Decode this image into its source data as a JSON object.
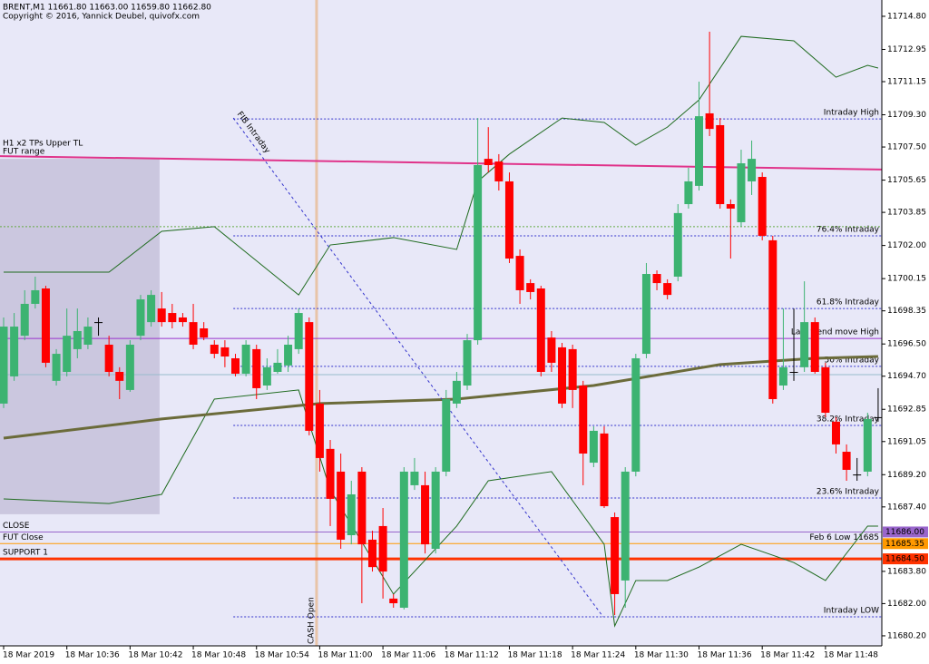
{
  "chart_data": {
    "type": "candlestick",
    "title": "BRENT,M1 11661.80 11663.00 11659.80 11662.80",
    "subtitle": "Copyright © 2016, Yannick Deubel, quivofx.com",
    "categories": [
      "18 Mar 2019",
      null,
      null,
      null,
      null,
      null,
      "18 Mar 10:36",
      null,
      null,
      null,
      null,
      null,
      "18 Mar 10:42",
      null,
      null,
      null,
      null,
      null,
      "18 Mar 10:48",
      null,
      null,
      null,
      null,
      null,
      "18 Mar 10:54",
      null,
      null,
      null,
      null,
      null,
      "18 Mar 11:00",
      null,
      null,
      null,
      null,
      null,
      "18 Mar 11:06",
      null,
      null,
      null,
      null,
      null,
      "18 Mar 11:12",
      null,
      null,
      null,
      null,
      null,
      "18 Mar 11:18",
      null,
      null,
      null,
      null,
      null,
      "18 Mar 11:24",
      null,
      null,
      null,
      null,
      null,
      "18 Mar 11:30",
      null,
      null,
      null,
      null,
      null,
      "18 Mar 11:36",
      null,
      null,
      null,
      null,
      null,
      "18 Mar 11:42",
      null,
      null,
      null,
      null,
      null,
      "18 Mar 11:48",
      null,
      null,
      null,
      null,
      null
    ],
    "open": [
      11693.17,
      11694.69,
      11696.96,
      11698.74,
      11699.6,
      11694.44,
      11694.94,
      11696.21,
      11696.46,
      11697.72,
      11696.46,
      11694.94,
      11693.93,
      11696.96,
      11697.72,
      11698.48,
      11698.23,
      11697.98,
      11697.72,
      11697.37,
      11696.46,
      11696.31,
      11695.7,
      11694.84,
      11696.21,
      11694.18,
      11694.94,
      11695.3,
      11696.21,
      11697.72,
      11693.17,
      11690.64,
      11689.37,
      11685.82,
      11689.37,
      11685.57,
      11686.33,
      11682.28,
      11681.77,
      11688.61,
      11688.61,
      11685.06,
      11689.37,
      11693.17,
      11694.18,
      11696.71,
      11706.84,
      11706.69,
      11705.58,
      11701.42,
      11699.9,
      11699.6,
      11696.86,
      11696.31,
      11696.21,
      11694.18,
      11689.87,
      11691.5,
      11686.83,
      11683.29,
      11689.37,
      11695.95,
      11700.41,
      11699.9,
      11700.26,
      11704.31,
      11705.33,
      11709.38,
      11708.72,
      11704.31,
      11703.3,
      11705.58,
      11705.83,
      11702.29,
      11694.18,
      11694.94,
      11695.2,
      11697.72,
      11695.2,
      11692.16,
      11690.48,
      11689.21,
      11689.37,
      11692.41
    ],
    "high": [
      11697.98,
      11698.23,
      11699.5,
      11700.26,
      11699.75,
      11696.21,
      11698.48,
      11698.48,
      11697.98,
      11697.98,
      11696.96,
      11695.2,
      11696.71,
      11699.24,
      11699.5,
      11699.4,
      11698.74,
      11698.23,
      11698.74,
      11697.72,
      11696.71,
      11696.71,
      11695.95,
      11696.71,
      11696.46,
      11695.7,
      11696.21,
      11696.96,
      11698.48,
      11697.98,
      11693.93,
      11691.14,
      11690.38,
      11688.86,
      11689.62,
      11686.07,
      11687.34,
      11682.53,
      11689.62,
      11690.13,
      11689.37,
      11689.62,
      11693.93,
      11694.94,
      11697.06,
      11709.12,
      11708.61,
      11707.1,
      11706.08,
      11701.78,
      11700.11,
      11699.75,
      11697.22,
      11696.56,
      11696.46,
      11694.44,
      11691.9,
      11691.9,
      11687.09,
      11689.62,
      11695.95,
      11701.02,
      11700.61,
      11700.11,
      11704.31,
      11706.34,
      11711.15,
      11713.94,
      11709.12,
      11704.57,
      11707.35,
      11707.86,
      11706.08,
      11702.54,
      11698.48,
      11698.48,
      11700.0,
      11697.98,
      11695.45,
      11692.41,
      11690.89,
      11690.13,
      11692.66,
      11694.03
    ],
    "low": [
      11692.92,
      11694.44,
      11696.71,
      11698.48,
      11695.2,
      11694.18,
      11694.69,
      11695.7,
      11696.21,
      11696.96,
      11694.69,
      11693.42,
      11693.83,
      11696.71,
      11697.47,
      11697.47,
      11697.37,
      11697.47,
      11696.21,
      11696.71,
      11695.7,
      11695.2,
      11694.69,
      11694.69,
      11693.42,
      11693.93,
      11694.84,
      11694.94,
      11695.95,
      11691.4,
      11689.37,
      11686.33,
      11685.06,
      11685.31,
      11682.02,
      11683.79,
      11682.28,
      11681.77,
      11681.67,
      11688.35,
      11684.8,
      11684.8,
      11689.11,
      11692.92,
      11693.93,
      11696.46,
      11706.08,
      11705.07,
      11701.02,
      11698.74,
      11698.99,
      11694.69,
      11694.94,
      11692.92,
      11692.92,
      11688.61,
      11689.62,
      11687.34,
      11681.36,
      11681.77,
      11689.11,
      11695.7,
      11699.5,
      11698.99,
      11700.0,
      11704.06,
      11705.07,
      11708.11,
      11704.06,
      11701.27,
      11703.05,
      11704.82,
      11702.29,
      11693.17,
      11693.93,
      11694.44,
      11694.94,
      11694.84,
      11692.41,
      11690.38,
      11688.86,
      11688.86,
      11689.11,
      11692.16
    ],
    "close": [
      11697.47,
      11697.47,
      11698.74,
      11699.5,
      11695.45,
      11695.95,
      11696.96,
      11697.22,
      11697.47,
      11697.72,
      11694.94,
      11694.44,
      11696.46,
      11698.99,
      11699.24,
      11697.72,
      11697.72,
      11697.72,
      11696.46,
      11696.86,
      11695.95,
      11695.8,
      11694.84,
      11696.46,
      11694.03,
      11695.2,
      11695.45,
      11696.46,
      11698.23,
      11691.65,
      11690.13,
      11687.85,
      11685.57,
      11688.1,
      11685.31,
      11684.04,
      11683.79,
      11682.02,
      11689.37,
      11689.37,
      11685.31,
      11689.37,
      11693.42,
      11694.44,
      11696.71,
      11706.49,
      11706.49,
      11705.58,
      11701.27,
      11699.5,
      11699.4,
      11694.94,
      11695.45,
      11693.17,
      11693.93,
      11690.38,
      11691.65,
      11687.44,
      11682.53,
      11689.37,
      11695.7,
      11700.41,
      11699.9,
      11699.24,
      11703.81,
      11705.58,
      11709.22,
      11708.51,
      11704.31,
      11704.06,
      11706.59,
      11706.84,
      11702.54,
      11693.42,
      11695.2,
      11694.94,
      11697.72,
      11694.94,
      11692.66,
      11690.89,
      11689.47,
      11689.21,
      11692.31,
      11692.41
    ],
    "up_color": "#3cb371",
    "down_color": "#ff0000",
    "xlim": [
      -0.345,
      83.35
    ],
    "ylim": [
      11679.64,
      11715.71
    ],
    "yticks": [
      {
        "value": 11714.8,
        "label": "11714.80"
      },
      {
        "value": 11712.95,
        "label": "11712.95"
      },
      {
        "value": 11711.15,
        "label": "11711.15"
      },
      {
        "value": 11709.3,
        "label": "11709.30"
      },
      {
        "value": 11707.5,
        "label": "11707.50"
      },
      {
        "value": 11705.65,
        "label": "11705.65"
      },
      {
        "value": 11703.85,
        "label": "11703.85"
      },
      {
        "value": 11702.0,
        "label": "11702.00"
      },
      {
        "value": 11700.15,
        "label": "11700.15"
      },
      {
        "value": 11698.35,
        "label": "11698.35"
      },
      {
        "value": 11696.5,
        "label": "11696.50"
      },
      {
        "value": 11694.7,
        "label": "11694.70"
      },
      {
        "value": 11692.85,
        "label": "11692.85"
      },
      {
        "value": 11691.05,
        "label": "11691.05"
      },
      {
        "value": 11689.2,
        "label": "11689.20"
      },
      {
        "value": 11687.4,
        "label": "11687.40"
      },
      {
        "value": 11683.8,
        "label": "11683.80"
      },
      {
        "value": 11682.0,
        "label": "11682.00"
      },
      {
        "value": 11680.2,
        "label": "11680.20"
      }
    ],
    "zones": [
      {
        "label": "FUT range",
        "x": [
          -0.345,
          14.8
        ],
        "values": [
          11706.84,
          11686.99
        ],
        "color": "#c8c3dc"
      }
    ],
    "lines": [
      {
        "color": "#1f6b1f",
        "x": [
          0,
          10,
          15,
          20,
          28,
          31,
          37,
          43,
          45,
          48,
          53,
          57,
          60,
          63,
          66,
          70,
          75,
          79,
          82,
          83
        ],
        "values": [
          11700.51,
          11700.51,
          11702.79,
          11703.05,
          11699.24,
          11702.03,
          11702.44,
          11701.78,
          11705.58,
          11707.1,
          11709.12,
          11708.87,
          11707.6,
          11708.61,
          11710.13,
          11713.68,
          11713.43,
          11711.4,
          11712.06,
          11711.91
        ]
      },
      {
        "color": "#1f6b1f",
        "x": [
          0,
          10,
          15,
          20,
          28,
          31,
          37,
          43,
          46,
          52,
          57,
          58,
          60,
          63,
          66,
          70,
          75,
          78,
          82,
          83
        ],
        "values": [
          11687.85,
          11687.59,
          11688.1,
          11693.42,
          11693.93,
          11688.35,
          11682.53,
          11686.33,
          11688.86,
          11689.37,
          11685.31,
          11680.75,
          11683.29,
          11683.29,
          11684.04,
          11685.31,
          11684.29,
          11683.29,
          11686.33,
          11686.33
        ]
      },
      {
        "color": "#6b6b3a",
        "style": "bold",
        "x": [
          0,
          15,
          30,
          43,
          56,
          68,
          77,
          83
        ],
        "values": [
          11691.24,
          11692.31,
          11693.17,
          11693.42,
          11694.18,
          11695.35,
          11695.7,
          11695.8
        ]
      }
    ],
    "trendlines": [
      {
        "label": "H1 x2 TPs Upper TL",
        "color": "#e0338a",
        "x": [
          -0.345,
          83.35
        ],
        "values": [
          11706.99,
          11706.24
        ]
      },
      {
        "label": "FIB Intraday",
        "color": "#3333cc",
        "dash": true,
        "x": [
          21.8,
          56.9
        ],
        "values": [
          11709.12,
          11681.26
        ]
      }
    ],
    "verticals": [
      {
        "label": "CASH Open",
        "x": 29.7,
        "color": "#e8c4a8"
      }
    ],
    "levels": [
      {
        "right_label": "Intraday High",
        "value": 11709.07,
        "color": "#3333cc",
        "dash": true,
        "x_start": 21.8
      },
      {
        "right_label": "76.4%  Intraday",
        "value": 11702.54,
        "color": "#3333cc",
        "dash": true,
        "x_start": 21.8
      },
      {
        "right_label": "61.8%  Intraday",
        "value": 11698.48,
        "color": "#3333cc",
        "dash": true,
        "x_start": 21.8
      },
      {
        "right_label": "50%   Intraday",
        "value": 11695.25,
        "color": "#3333cc",
        "dash": true,
        "x_start": 21.8
      },
      {
        "right_label": "38.2%  Intraday",
        "value": 11691.95,
        "color": "#3333cc",
        "dash": true,
        "x_start": 21.8
      },
      {
        "right_label": "23.6%  Intraday",
        "value": 11687.9,
        "color": "#3333cc",
        "dash": true,
        "x_start": 21.8
      },
      {
        "right_label": "Intraday LOW",
        "value": 11681.26,
        "color": "#3333cc",
        "dash": true,
        "x_start": 21.8
      },
      {
        "right_label": "Last trend move  High",
        "value": 11696.81,
        "color": "#9933cc"
      },
      {
        "value": 11703.05,
        "color": "#66aa44",
        "dash": true
      },
      {
        "value": 11694.79,
        "color": "#99bbcc"
      },
      {
        "left_label": "CLOSE",
        "value": 11686.0,
        "value_label": "11686.00",
        "color": "#9966cc"
      },
      {
        "left_label": "FUT Close",
        "right_label": "Feb 6 Low 11685",
        "value": 11685.35,
        "value_label": "11685.35",
        "color": "#ff9900"
      },
      {
        "left_label": "SUPPORT 1",
        "value": 11684.5,
        "value_label": "11684.50",
        "color": "#ff3300",
        "style": "bold"
      }
    ]
  }
}
